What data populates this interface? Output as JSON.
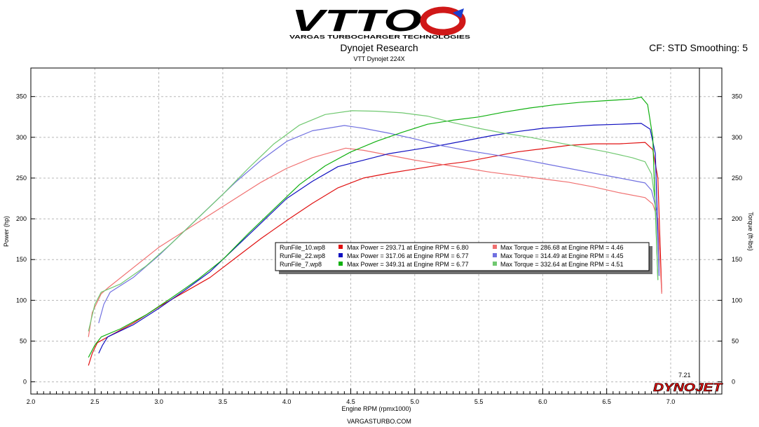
{
  "header": {
    "logo_text": "VTTO",
    "logo_tagline": "VARGAS TURBOCHARGER TECHNOLOGIES",
    "title": "Dynojet Research",
    "subtitle": "VTT Dynojet 224X",
    "settings": "CF: STD Smoothing: 5"
  },
  "footer": {
    "website": "VARGASTURBO.COM"
  },
  "colors": {
    "run10_power": "#e01010",
    "run10_torque": "#f07070",
    "run22_power": "#1010c0",
    "run22_torque": "#7070e0",
    "run7_power": "#10b010",
    "run7_torque": "#70c870"
  },
  "chart_data": {
    "type": "line",
    "title": "Dynojet Research",
    "subtitle": "VTT Dynojet 224X",
    "xlabel": "Engine RPM (rpmx1000)",
    "ylabel": "Power (hp)",
    "y2label": "Torque (ft-lbs)",
    "xlim": [
      2.0,
      7.4
    ],
    "ylim": [
      -15,
      385
    ],
    "x_ticks": [
      "2.0",
      "2.5",
      "3.0",
      "3.5",
      "4.0",
      "4.5",
      "5.0",
      "5.5",
      "6.0",
      "6.5",
      "7.0"
    ],
    "y_ticks": [
      "0",
      "50",
      "100",
      "150",
      "200",
      "250",
      "300",
      "350"
    ],
    "y2_ticks": [
      "0",
      "50",
      "100",
      "150",
      "200",
      "250",
      "300",
      "350"
    ],
    "grid": true,
    "cursor_value": "7.21",
    "brand": "DYNOJET",
    "legend": {
      "placement": "center",
      "rows": [
        {
          "file": "RunFile_10.wp8",
          "power": "Max Power = 293.71 at Engine RPM = 6.80",
          "torque": "Max Torque = 286.68 at Engine RPM = 4.46"
        },
        {
          "file": "RunFile_22.wp8",
          "power": "Max Power = 317.06 at Engine RPM = 6.77",
          "torque": "Max Torque = 314.49 at Engine RPM = 4.45"
        },
        {
          "file": "RunFile_7.wp8",
          "power": "Max Power = 349.31 at Engine RPM = 6.77",
          "torque": "Max Torque = 332.64 at Engine RPM = 4.51"
        }
      ]
    },
    "series": [
      {
        "name": "RunFile_10.wp8",
        "kind": "power",
        "color": "#e01010",
        "x": [
          2.45,
          2.48,
          2.52,
          2.6,
          2.8,
          3.0,
          3.2,
          3.4,
          3.6,
          3.8,
          4.0,
          4.2,
          4.4,
          4.6,
          4.8,
          5.0,
          5.2,
          5.4,
          5.6,
          5.8,
          6.0,
          6.2,
          6.4,
          6.6,
          6.8,
          6.86,
          6.9,
          6.93
        ],
        "y": [
          20,
          35,
          48,
          55,
          72,
          92,
          110,
          128,
          152,
          176,
          198,
          219,
          238,
          250,
          256,
          261,
          266,
          270,
          276,
          282,
          286,
          290,
          292,
          292,
          293.7,
          285,
          250,
          110
        ]
      },
      {
        "name": "RunFile_10.wp8",
        "kind": "torque",
        "color": "#f07070",
        "x": [
          2.45,
          2.48,
          2.55,
          2.6,
          2.8,
          3.0,
          3.2,
          3.4,
          3.6,
          3.8,
          4.0,
          4.2,
          4.46,
          4.6,
          4.8,
          5.0,
          5.2,
          5.4,
          5.6,
          5.8,
          6.0,
          6.2,
          6.4,
          6.6,
          6.8,
          6.86,
          6.9,
          6.93
        ],
        "y": [
          55,
          85,
          108,
          115,
          140,
          165,
          185,
          205,
          225,
          245,
          262,
          275,
          286.7,
          284,
          278,
          272,
          267,
          262,
          257,
          253,
          249,
          245,
          239,
          232,
          226,
          218,
          200,
          108
        ]
      },
      {
        "name": "RunFile_22.wp8",
        "kind": "power",
        "color": "#1010c0",
        "x": [
          2.53,
          2.56,
          2.6,
          2.8,
          3.0,
          3.2,
          3.4,
          3.6,
          3.8,
          4.0,
          4.2,
          4.4,
          4.6,
          4.8,
          5.0,
          5.2,
          5.4,
          5.6,
          5.8,
          6.0,
          6.2,
          6.4,
          6.6,
          6.77,
          6.84,
          6.88,
          6.91
        ],
        "y": [
          35,
          45,
          55,
          70,
          90,
          112,
          135,
          165,
          195,
          225,
          246,
          264,
          272,
          280,
          285,
          290,
          296,
          302,
          307,
          311,
          313,
          315,
          316,
          317.06,
          310,
          280,
          130
        ]
      },
      {
        "name": "RunFile_22.wp8",
        "kind": "torque",
        "color": "#7070e0",
        "x": [
          2.53,
          2.57,
          2.62,
          2.8,
          3.0,
          3.2,
          3.4,
          3.6,
          3.8,
          4.0,
          4.2,
          4.45,
          4.6,
          4.8,
          5.0,
          5.2,
          5.4,
          5.6,
          5.8,
          6.0,
          6.2,
          6.4,
          6.6,
          6.8,
          6.85,
          6.89,
          6.91
        ],
        "y": [
          72,
          95,
          110,
          128,
          155,
          185,
          215,
          245,
          272,
          295,
          308,
          314.5,
          311,
          305,
          298,
          290,
          284,
          279,
          274,
          268,
          262,
          256,
          250,
          244,
          235,
          210,
          130
        ]
      },
      {
        "name": "RunFile_7.wp8",
        "kind": "power",
        "color": "#10b010",
        "x": [
          2.45,
          2.5,
          2.55,
          2.7,
          2.9,
          3.1,
          3.3,
          3.5,
          3.7,
          3.9,
          4.1,
          4.3,
          4.5,
          4.7,
          4.9,
          5.1,
          5.3,
          5.5,
          5.7,
          5.9,
          6.1,
          6.3,
          6.5,
          6.7,
          6.77,
          6.82,
          6.86,
          6.9
        ],
        "y": [
          30,
          45,
          55,
          65,
          82,
          103,
          125,
          150,
          182,
          212,
          242,
          265,
          282,
          295,
          306,
          316,
          321,
          325,
          331,
          336,
          340,
          343,
          345,
          347,
          349.3,
          340,
          300,
          125
        ]
      },
      {
        "name": "RunFile_7.wp8",
        "kind": "torque",
        "color": "#70c870",
        "x": [
          2.45,
          2.5,
          2.55,
          2.7,
          2.9,
          3.1,
          3.3,
          3.5,
          3.7,
          3.9,
          4.1,
          4.3,
          4.51,
          4.7,
          4.9,
          5.1,
          5.3,
          5.5,
          5.7,
          5.9,
          6.1,
          6.3,
          6.5,
          6.7,
          6.8,
          6.85,
          6.88,
          6.9
        ],
        "y": [
          62,
          95,
          110,
          120,
          142,
          170,
          200,
          230,
          262,
          292,
          315,
          328,
          332.6,
          332,
          330,
          326,
          318,
          311,
          305,
          300,
          294,
          288,
          282,
          275,
          270,
          255,
          220,
          125
        ]
      }
    ]
  }
}
